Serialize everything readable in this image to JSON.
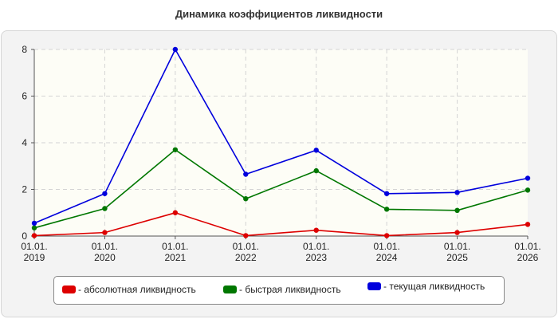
{
  "chart_data": {
    "type": "line",
    "title": "Динамика коэффициентов ликвидности",
    "categories": [
      [
        "01.01.",
        "2019"
      ],
      [
        "01.01.",
        "2020"
      ],
      [
        "01.01.",
        "2021"
      ],
      [
        "01.01.",
        "2022"
      ],
      [
        "01.01.",
        "2023"
      ],
      [
        "01.01.",
        "2024"
      ],
      [
        "01.01.",
        "2025"
      ],
      [
        "01.01.",
        "2026"
      ]
    ],
    "ylim": [
      0,
      8
    ],
    "yticks": [
      "0",
      "2",
      "4",
      "6",
      "8"
    ],
    "grid": true,
    "legend_position": "bottom",
    "series": [
      {
        "name": "- абсолютная ликвидность",
        "color": "#dd0000",
        "values": [
          0.02,
          0.15,
          1.0,
          0.02,
          0.25,
          0.02,
          0.15,
          0.5
        ]
      },
      {
        "name": "- быстрая ликвидность",
        "color": "#007700",
        "values": [
          0.35,
          1.18,
          3.7,
          1.6,
          2.8,
          1.15,
          1.1,
          1.97
        ]
      },
      {
        "name": "- текущая ликвидность",
        "color": "#0000dd",
        "values": [
          0.55,
          1.82,
          8.0,
          2.65,
          3.68,
          1.82,
          1.87,
          2.48
        ]
      }
    ]
  }
}
